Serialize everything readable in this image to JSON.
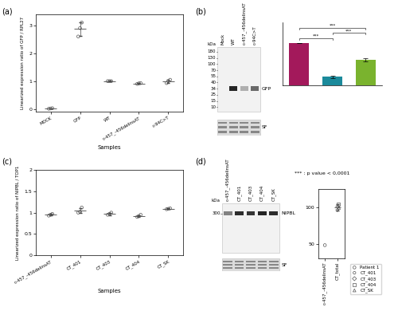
{
  "chart_data": [
    {
      "panel": "(a)",
      "type": "scatter",
      "x_label": "Samples",
      "y_label": "Linearized expression ratio of GFP / RPL27",
      "categories": [
        "MOCK",
        "GFP",
        "WT",
        "c-457_-456delinsAT",
        "c-94C>T"
      ],
      "points": [
        [
          0.01,
          0.02,
          0.03
        ],
        [
          2.6,
          2.9,
          3.1
        ],
        [
          1.0,
          1.0,
          1.0
        ],
        [
          0.9,
          0.92,
          0.93
        ],
        [
          0.93,
          1.0,
          1.05
        ]
      ],
      "means": [
        0.02,
        2.87,
        1.0,
        0.92,
        0.99
      ],
      "errors": [
        0.01,
        0.25,
        0.01,
        0.015,
        0.06
      ],
      "marker": "circle",
      "ylim": [
        -0.1,
        3.4
      ],
      "yticks": [
        0,
        1,
        2,
        3
      ]
    },
    {
      "panel": "(b)",
      "type": "bar",
      "categories": [
        "WT",
        "c-457_-456delinsAT",
        "c-94C>T"
      ],
      "values": [
        100,
        20,
        60
      ],
      "errors": [
        0,
        3,
        4
      ],
      "colors": [
        "#a3195b",
        "#1b8a9b",
        "#7ab32e"
      ],
      "ylim": [
        0,
        150
      ],
      "tick_labels": false,
      "significance": [
        {
          "pair": [
            0,
            1
          ],
          "label": "***"
        },
        {
          "pair": [
            1,
            2
          ],
          "label": "***"
        },
        {
          "pair": [
            0,
            2
          ],
          "label": "***"
        }
      ],
      "note": "*** : p value < 0,0001"
    },
    {
      "panel": "(c)",
      "type": "scatter",
      "x_label": "Samples",
      "y_label": "Linearized expression ratio of NIPBL / TOP1",
      "categories": [
        "c-457_-456delinsAT",
        "CT_401",
        "CT_403",
        "CT_404",
        "CT_SK"
      ],
      "points": [
        [
          0.93,
          0.95,
          0.97
        ],
        [
          1.0,
          1.02,
          1.12
        ],
        [
          0.95,
          0.97,
          1.0
        ],
        [
          0.9,
          0.92,
          0.95
        ],
        [
          1.08,
          1.09,
          1.1
        ]
      ],
      "means": [
        0.95,
        1.05,
        0.97,
        0.92,
        1.09
      ],
      "errors": [
        0.02,
        0.06,
        0.025,
        0.025,
        0.01
      ],
      "marker": "circle",
      "ylim": [
        0,
        2
      ],
      "yticks": [
        0,
        0.5,
        1,
        1.5,
        2
      ]
    },
    {
      "panel": "(d)",
      "type": "scatter",
      "categories": [
        "c-457_-456delinsAT",
        "CT_total"
      ],
      "series": [
        {
          "name": "Patient 1",
          "marker": "circle",
          "values": [
            48,
            null
          ]
        },
        {
          "name": "CT_401",
          "marker": "hexagon",
          "values": [
            null,
            96
          ]
        },
        {
          "name": "CT_403",
          "marker": "diamond",
          "values": [
            null,
            101
          ]
        },
        {
          "name": "CT_404",
          "marker": "square",
          "values": [
            null,
            104
          ]
        },
        {
          "name": "CT_SK",
          "marker": "triangle",
          "values": [
            null,
            99
          ]
        }
      ],
      "means": [
        null,
        100
      ],
      "errors": [
        null,
        4
      ],
      "ylim": [
        30,
        125
      ],
      "yticks": [
        50,
        100
      ],
      "legend": "upper left"
    }
  ],
  "blots": [
    {
      "lanes": [
        "Mock",
        "WT",
        "c-457_-456delinsAT",
        "c-94C>T"
      ],
      "kda_label": "kDa",
      "markers": [
        180,
        130,
        100,
        70,
        55,
        40,
        34,
        25,
        15,
        10
      ],
      "band": {
        "label": "GFP",
        "kda": 34,
        "intensity": [
          0,
          100,
          20,
          60
        ]
      },
      "loading": "SF"
    },
    {
      "lanes": [
        "c-457_-456delinsAT",
        "CT_401",
        "CT_403",
        "CT_404",
        "CT_SK"
      ],
      "kda_label": "kDa",
      "markers": [
        300
      ],
      "band": {
        "label": "NIPBL",
        "kda": 300,
        "intensity": [
          48,
          100,
          95,
          105,
          100
        ]
      },
      "loading": "SF"
    }
  ]
}
